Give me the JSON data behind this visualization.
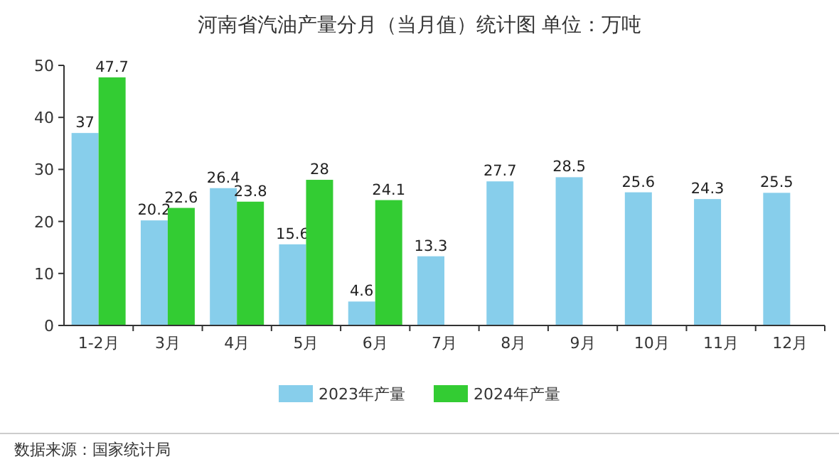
{
  "chart_data": {
    "type": "bar",
    "title": "河南省汽油产量分月（当月值）统计图 单位：万吨",
    "categories": [
      "1-2月",
      "3月",
      "4月",
      "5月",
      "6月",
      "7月",
      "8月",
      "9月",
      "10月",
      "11月",
      "12月"
    ],
    "series": [
      {
        "name": "2023年产量",
        "color": "#87ceeb",
        "values": [
          37,
          20.2,
          26.4,
          15.6,
          4.6,
          13.3,
          27.7,
          28.5,
          25.6,
          24.3,
          25.5
        ]
      },
      {
        "name": "2024年产量",
        "color": "#33cc33",
        "values": [
          47.7,
          22.6,
          23.8,
          28,
          24.1,
          null,
          null,
          null,
          null,
          null,
          null
        ]
      }
    ],
    "ylim": [
      0,
      50
    ],
    "yticks": [
      0,
      10,
      20,
      30,
      40,
      50
    ],
    "data_labels": true,
    "legend": "bottom",
    "grid": false,
    "annotations": [
      "数据来源：国家统计局"
    ]
  }
}
